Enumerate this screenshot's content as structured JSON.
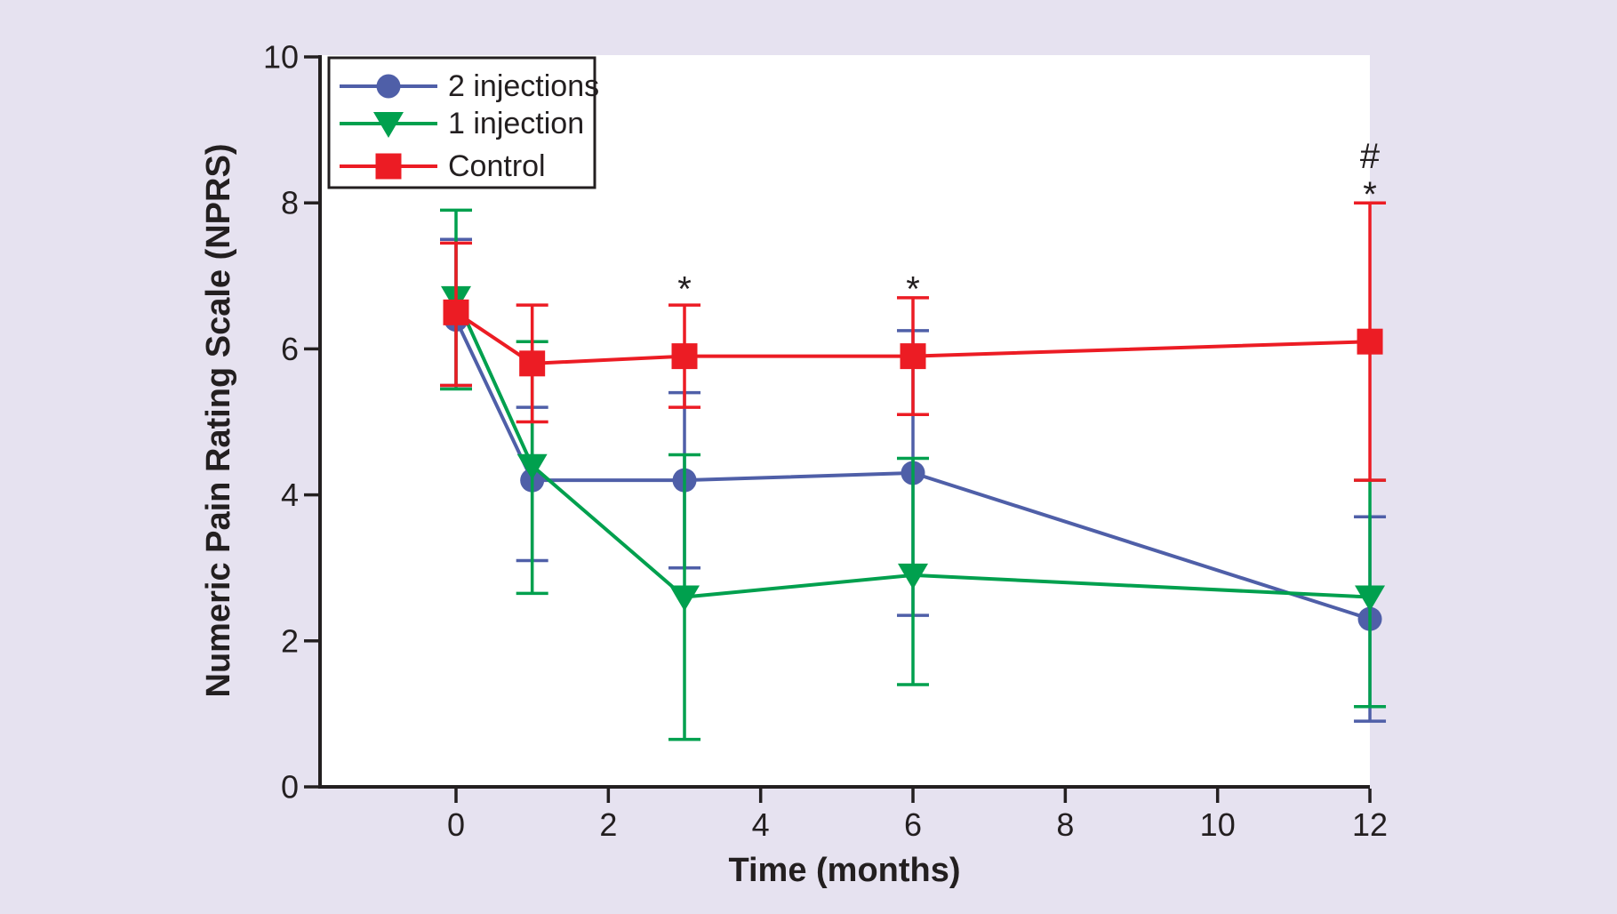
{
  "figure": {
    "background_color": "#e6e2f0",
    "plot_background_color": "#ffffff",
    "axis_color": "#231f20",
    "text_color": "#231f20"
  },
  "chart_data": {
    "type": "line",
    "title": "",
    "xlabel": "Time (months)",
    "ylabel": "Numeric Pain Rating Scale (NPRS)",
    "x": [
      0,
      1,
      3,
      6,
      12
    ],
    "x_ticks": [
      0,
      2,
      4,
      6,
      8,
      10,
      12
    ],
    "y_ticks": [
      0,
      2,
      4,
      6,
      8,
      10
    ],
    "xlim": [
      -1.8,
      12
    ],
    "ylim": [
      0,
      10
    ],
    "grid": false,
    "error_bars": true,
    "series": [
      {
        "name": "2 injections",
        "color": "#4f5fa8",
        "marker": "circle",
        "values": [
          6.4,
          4.2,
          4.2,
          4.3,
          2.3
        ],
        "err_low": [
          5.5,
          3.1,
          3.0,
          2.35,
          0.9
        ],
        "err_high": [
          7.5,
          5.2,
          5.4,
          6.25,
          3.7
        ]
      },
      {
        "name": "1 injection",
        "color": "#00a04e",
        "marker": "triangle-down",
        "values": [
          6.7,
          4.4,
          2.6,
          2.9,
          2.6
        ],
        "err_low": [
          5.45,
          2.65,
          0.65,
          1.4,
          1.1
        ],
        "err_high": [
          7.9,
          6.1,
          4.55,
          4.5,
          4.2
        ]
      },
      {
        "name": "Control",
        "color": "#ec1c24",
        "marker": "square",
        "values": [
          6.5,
          5.8,
          5.9,
          5.9,
          6.1
        ],
        "err_low": [
          5.5,
          5.0,
          5.2,
          5.1,
          4.2
        ],
        "err_high": [
          7.45,
          6.6,
          6.6,
          6.7,
          8.0
        ]
      }
    ],
    "annotations": [
      {
        "x": 3,
        "y": 6.9,
        "text": "*"
      },
      {
        "x": 6,
        "y": 6.9,
        "text": "*"
      },
      {
        "x": 12,
        "y": 8.2,
        "text": "*"
      },
      {
        "x": 12,
        "y": 8.65,
        "text": "#"
      }
    ],
    "legend": {
      "position": "top-left",
      "items": [
        "2 injections",
        "1 injection",
        "Control"
      ]
    }
  }
}
